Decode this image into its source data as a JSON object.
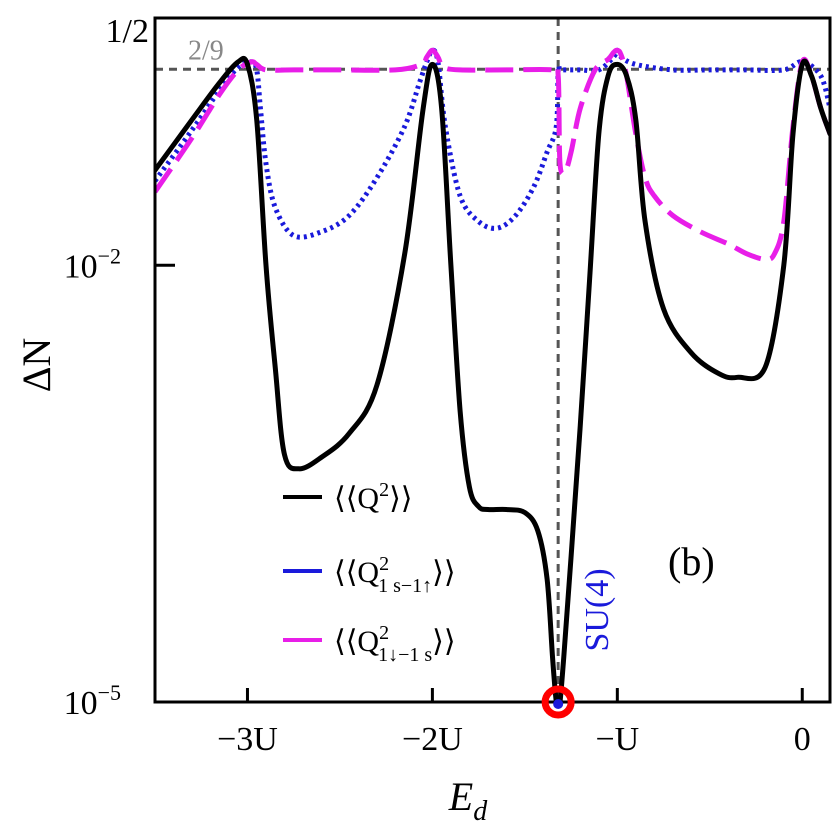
{
  "chart_data": {
    "type": "line",
    "panel_label": "(b)",
    "xlabel": "E",
    "xlabel_sub": "d",
    "ylabel": "ΔN",
    "yscale": "log",
    "xlim": [
      -3.5,
      0.15
    ],
    "ylim_exp": [
      -5,
      -0.301
    ],
    "x_ticks": [
      {
        "value": -3,
        "label": "−3U"
      },
      {
        "value": -2,
        "label": "−2U"
      },
      {
        "value": -1,
        "label": "−U"
      },
      {
        "value": 0,
        "label": "0"
      }
    ],
    "y_ticks": [
      {
        "exp": -5,
        "base": "10",
        "sup": "−5"
      },
      {
        "exp": -2,
        "base": "10",
        "sup": "−2"
      },
      {
        "exp": -0.301,
        "base": "1/2",
        "sup": ""
      }
    ],
    "reference_line": {
      "label": "2/9",
      "value": 0.2222,
      "color": "#555555"
    },
    "vertical_line": {
      "x": -1.32,
      "color": "#555555"
    },
    "su4_point": {
      "x": -1.32,
      "label": "SU(4)",
      "label_color": "#1a1adb",
      "marker_color": "#ff0000",
      "inner_color": "#1a1adb"
    },
    "series": [
      {
        "name": "⟨⟨Q²⟩⟩",
        "color": "#000000",
        "style": "solid",
        "x": [
          -3.5,
          -3.3,
          -3.15,
          -3.05,
          -3.0,
          -2.95,
          -2.9,
          -2.85,
          -2.8,
          -2.72,
          -2.6,
          -2.45,
          -2.3,
          -2.15,
          -2.05,
          -2.0,
          -1.95,
          -1.9,
          -1.85,
          -1.8,
          -1.75,
          -1.7,
          -1.6,
          -1.5,
          -1.43,
          -1.38,
          -1.35,
          -1.33,
          -1.32,
          -1.31,
          -1.29,
          -1.25,
          -1.2,
          -1.15,
          -1.1,
          -1.05,
          -1.0,
          -0.95,
          -0.9,
          -0.85,
          -0.75,
          -0.6,
          -0.45,
          -0.35,
          -0.2,
          -0.1,
          -0.05,
          0.0,
          0.05,
          0.1,
          0.15
        ],
        "y": [
          0.045,
          0.1,
          0.18,
          0.25,
          0.24,
          0.1,
          0.01,
          0.002,
          0.0005,
          0.0004,
          0.00048,
          0.0007,
          0.0015,
          0.012,
          0.12,
          0.24,
          0.12,
          0.01,
          0.001,
          0.0003,
          0.00022,
          0.00021,
          0.00021,
          0.0002,
          0.00015,
          7e-05,
          2e-05,
          1e-05,
          1e-05,
          1e-05,
          2e-05,
          0.0001,
          0.0008,
          0.008,
          0.08,
          0.2,
          0.24,
          0.2,
          0.1,
          0.02,
          0.005,
          0.0025,
          0.0018,
          0.0017,
          0.002,
          0.01,
          0.08,
          0.24,
          0.2,
          0.12,
          0.08
        ]
      },
      {
        "name": "⟨⟨Q²1s−1↑⟩⟩",
        "color": "#1a1adb",
        "style": "dotted",
        "x": [
          -3.5,
          -3.3,
          -3.15,
          -3.05,
          -2.98,
          -2.95,
          -2.93,
          -2.9,
          -2.85,
          -2.75,
          -2.6,
          -2.45,
          -2.3,
          -2.15,
          -2.07,
          -2.03,
          -2.0,
          -1.97,
          -1.93,
          -1.85,
          -1.75,
          -1.65,
          -1.55,
          -1.45,
          -1.38,
          -1.33,
          -1.32,
          -1.31,
          -1.28,
          -1.2,
          -1.1,
          -1.02,
          -1.0,
          -0.98,
          -0.9,
          -0.7,
          -0.5,
          -0.3,
          -0.1,
          0.0,
          0.1,
          0.15
        ],
        "y": [
          0.038,
          0.085,
          0.16,
          0.23,
          0.25,
          0.22,
          0.12,
          0.05,
          0.025,
          0.016,
          0.017,
          0.022,
          0.04,
          0.09,
          0.18,
          0.25,
          0.3,
          0.25,
          0.09,
          0.03,
          0.02,
          0.018,
          0.022,
          0.035,
          0.06,
          0.09,
          0.22,
          0.22,
          0.22,
          0.22,
          0.22,
          0.27,
          0.3,
          0.27,
          0.24,
          0.22,
          0.22,
          0.22,
          0.22,
          0.25,
          0.2,
          0.12
        ]
      },
      {
        "name": "⟨⟨Q²1↓−1s⟩⟩",
        "color": "#e81ee8",
        "style": "dashed",
        "x": [
          -3.5,
          -3.3,
          -3.15,
          -3.05,
          -2.98,
          -2.95,
          -2.9,
          -2.75,
          -2.5,
          -2.2,
          -2.06,
          -2.03,
          -2.0,
          -1.97,
          -1.94,
          -1.85,
          -1.6,
          -1.35,
          -1.32,
          -1.31,
          -1.28,
          -1.25,
          -1.2,
          -1.12,
          -1.05,
          -1.02,
          -1.0,
          -0.98,
          -0.95,
          -0.9,
          -0.85,
          -0.8,
          -0.7,
          -0.55,
          -0.4,
          -0.3,
          -0.2,
          -0.15,
          -0.1,
          -0.05,
          0.0,
          0.05,
          0.1,
          0.15
        ],
        "y": [
          0.032,
          0.075,
          0.15,
          0.22,
          0.25,
          0.24,
          0.22,
          0.22,
          0.22,
          0.22,
          0.24,
          0.27,
          0.3,
          0.27,
          0.23,
          0.22,
          0.22,
          0.22,
          0.2,
          0.05,
          0.045,
          0.06,
          0.12,
          0.22,
          0.26,
          0.29,
          0.3,
          0.28,
          0.2,
          0.08,
          0.04,
          0.03,
          0.022,
          0.017,
          0.014,
          0.012,
          0.011,
          0.012,
          0.02,
          0.09,
          0.25,
          0.2,
          0.12,
          0.08
        ]
      }
    ]
  }
}
